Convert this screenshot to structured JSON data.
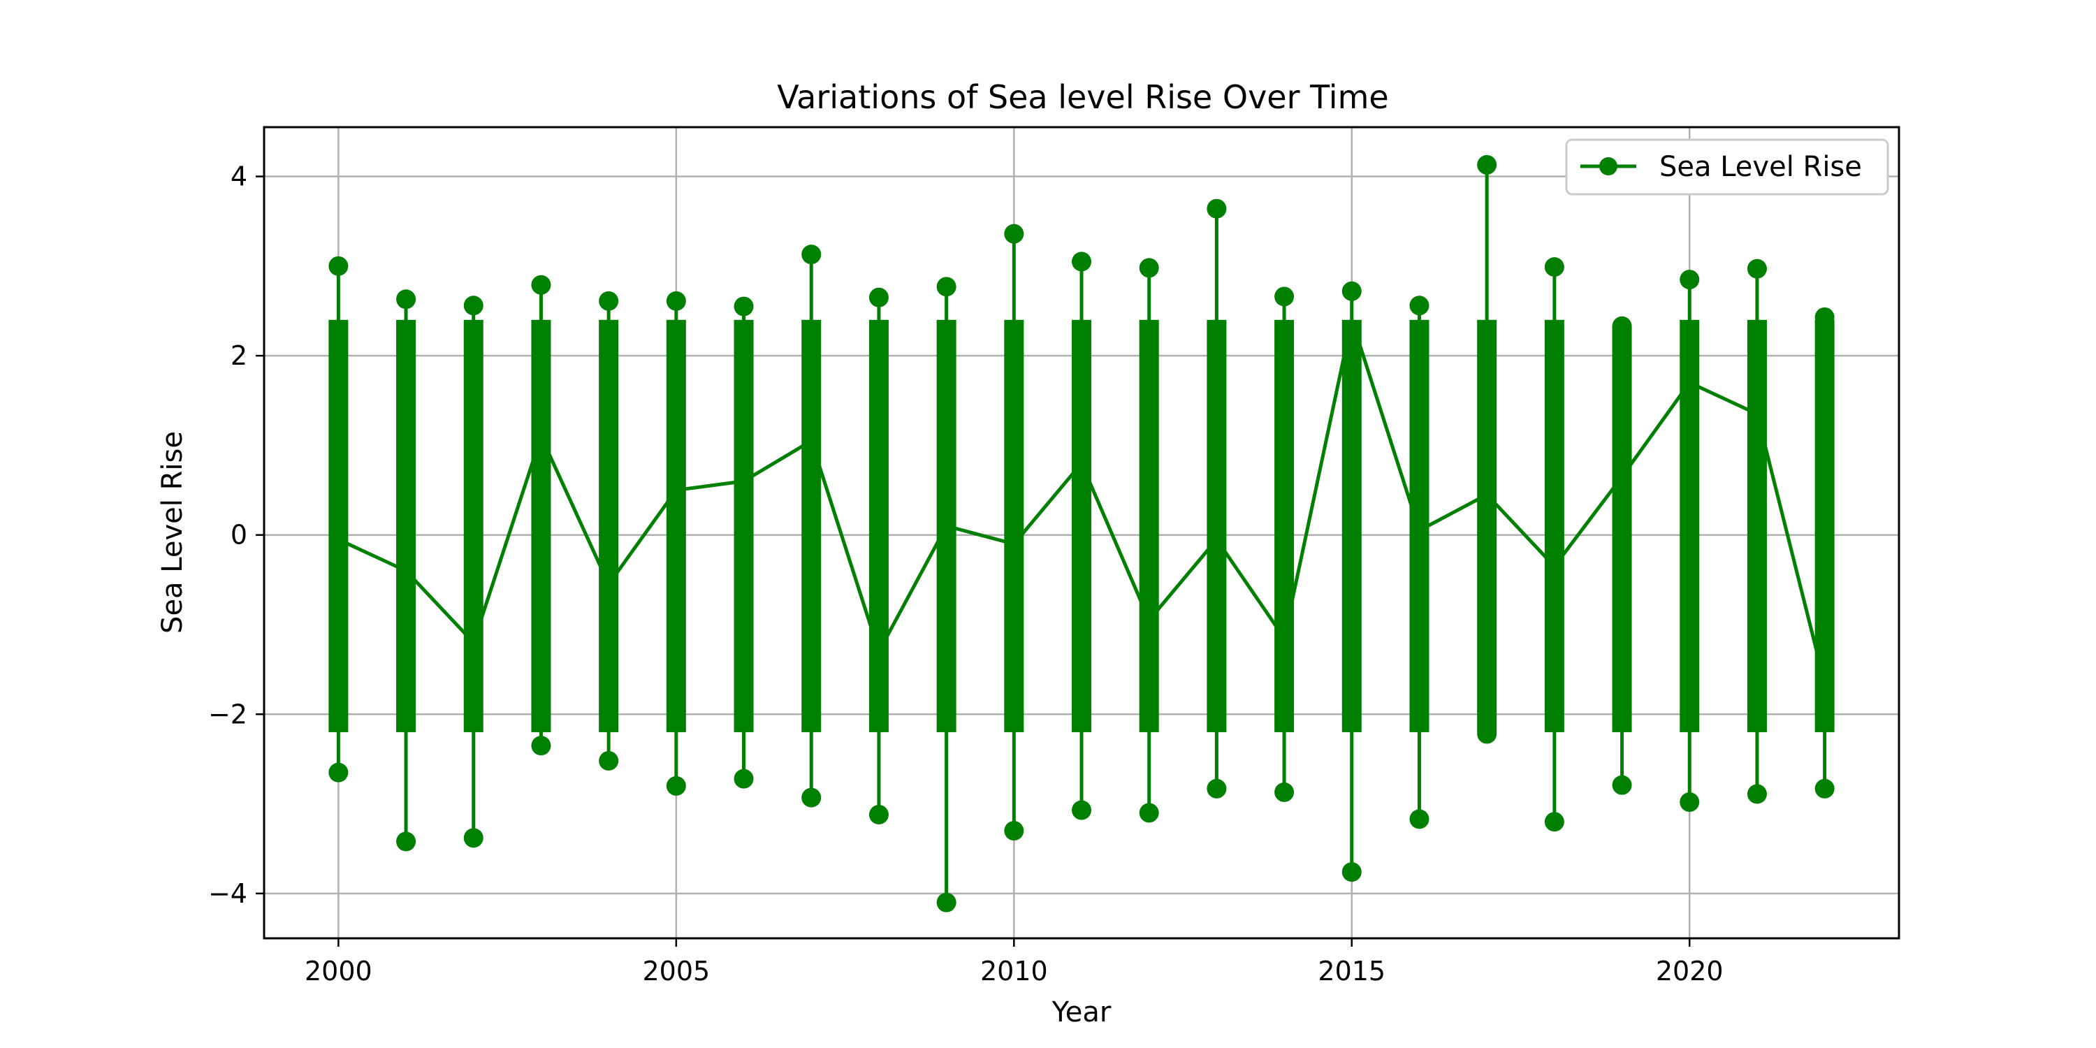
{
  "chart_data": {
    "type": "line",
    "title": "Variations of Sea level Rise Over Time",
    "xlabel": "Year",
    "ylabel": "Sea Level Rise",
    "xlim": [
      1998.9,
      2023.1
    ],
    "ylim": [
      -4.5,
      4.55
    ],
    "xticks": [
      2000,
      2005,
      2010,
      2015,
      2020
    ],
    "xtick_labels": [
      "2000",
      "2005",
      "2010",
      "2015",
      "2020"
    ],
    "yticks": [
      -4,
      -2,
      0,
      2,
      4
    ],
    "ytick_labels": [
      "−4",
      "−2",
      "0",
      "2",
      "4"
    ],
    "grid": true,
    "legend": {
      "placement": "top-right",
      "entries": [
        "Sea Level Rise"
      ]
    },
    "series": [
      {
        "name": "Sea Level Rise",
        "color": "#008000",
        "marker": "circle",
        "x": [
          2000,
          2001,
          2002,
          2003,
          2004,
          2005,
          2006,
          2007,
          2008,
          2009,
          2010,
          2011,
          2012,
          2013,
          2014,
          2015,
          2016,
          2017,
          2018,
          2019,
          2020,
          2021,
          2022
        ],
        "connect_points": [
          -0.05,
          -0.4,
          -1.2,
          1.1,
          -0.55,
          0.5,
          0.6,
          1.05,
          -1.3,
          0.1,
          -0.1,
          0.8,
          -0.95,
          -0.05,
          -1.15,
          2.4,
          0.05,
          0.45,
          -0.35,
          0.65,
          1.7,
          1.35,
          -1.65
        ],
        "min": [
          -2.65,
          -3.42,
          -3.38,
          -2.35,
          -2.52,
          -2.8,
          -2.72,
          -2.93,
          -3.12,
          -4.1,
          -3.3,
          -3.07,
          -3.1,
          -2.83,
          -2.87,
          -3.76,
          -3.17,
          -2.22,
          -3.2,
          -2.79,
          -2.98,
          -2.89,
          -2.83
        ],
        "max": [
          3.0,
          2.63,
          2.56,
          2.79,
          2.61,
          2.61,
          2.55,
          3.13,
          2.65,
          2.77,
          3.36,
          3.05,
          2.98,
          3.64,
          2.66,
          2.72,
          2.56,
          4.13,
          2.99,
          2.33,
          2.85,
          2.97,
          2.43
        ]
      }
    ]
  }
}
